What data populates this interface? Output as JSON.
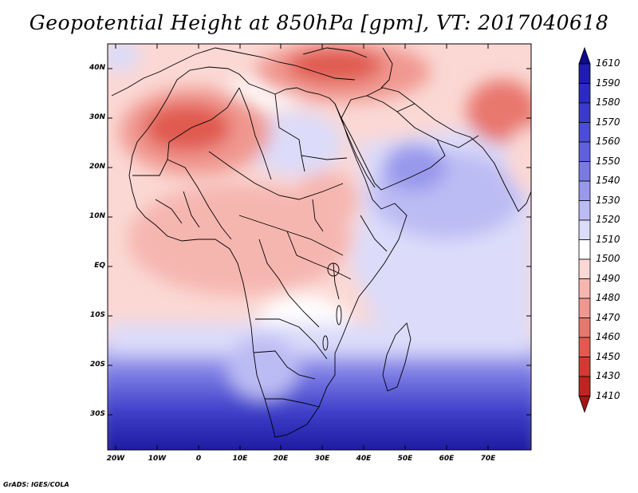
{
  "title": "Geopotential Height at 850hPa [gpm], VT: 2017040618",
  "credit": "GrADS: IGES/COLA",
  "map": {
    "region": "Africa and Middle East",
    "lat_range": [
      -37,
      46
    ],
    "lon_range": [
      -23,
      80
    ],
    "lat_ticks": [
      "40N",
      "30N",
      "20N",
      "10N",
      "EQ",
      "10S",
      "20S",
      "30S"
    ],
    "lon_ticks": [
      "20W",
      "10W",
      "0",
      "10E",
      "20E",
      "30E",
      "40E",
      "50E",
      "60E",
      "70E"
    ]
  },
  "colorbar": {
    "levels": [
      "1610",
      "1590",
      "1580",
      "1570",
      "1560",
      "1550",
      "1540",
      "1530",
      "1520",
      "1510",
      "1500",
      "1490",
      "1480",
      "1470",
      "1460",
      "1450",
      "1430",
      "1410"
    ],
    "colors": [
      "#100a8c",
      "#1f1cae",
      "#2b2cbe",
      "#3a3cc8",
      "#4b4dd2",
      "#6060dc",
      "#7a7ae4",
      "#9898ec",
      "#bcbcf4",
      "#dcdcfa",
      "#ffffff",
      "#fbd8d4",
      "#f6b6b0",
      "#f09890",
      "#e8776e",
      "#e05a50",
      "#d03c34",
      "#bc2620",
      "#a81414"
    ]
  }
}
